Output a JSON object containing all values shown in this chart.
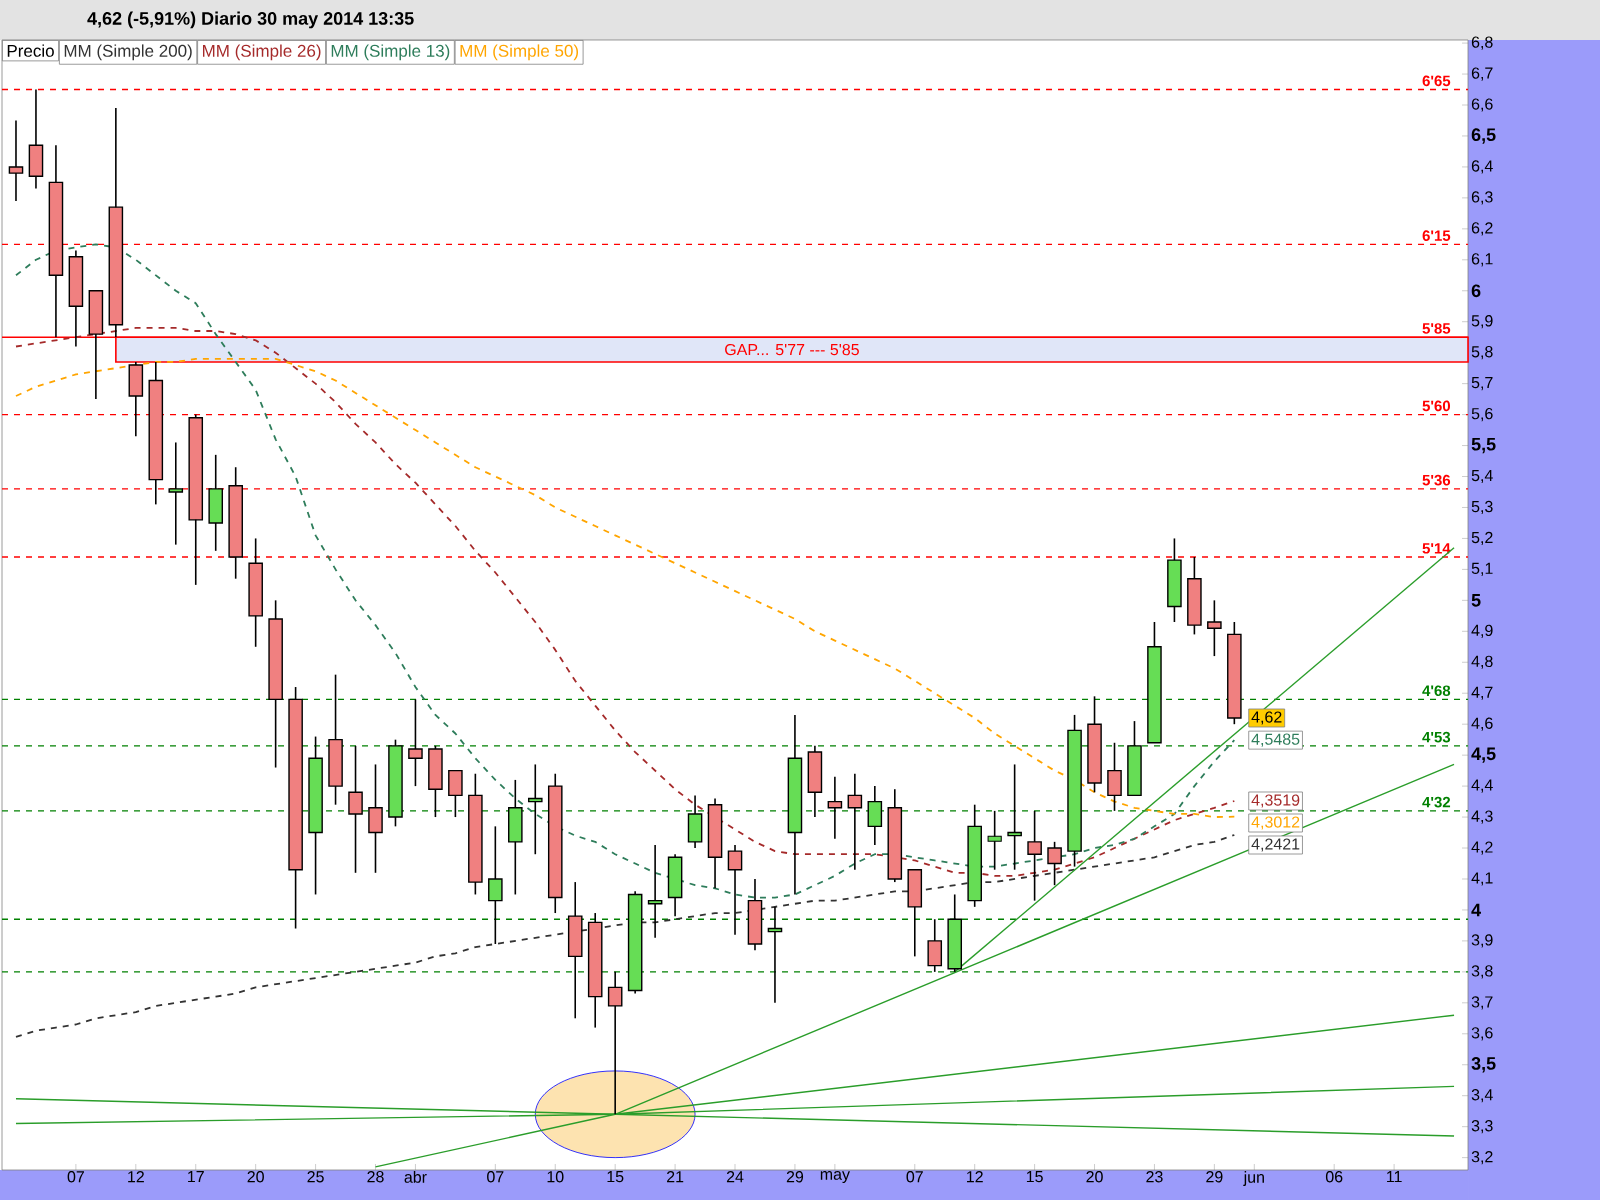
{
  "chart_data": {
    "type": "candlestick",
    "title": "4,62 (-5,91%)   Diario  30 may 2014 13:35",
    "categories": [
      null,
      null,
      null,
      "07",
      null,
      null,
      "12",
      null,
      null,
      "17",
      null,
      null,
      "20",
      null,
      null,
      "25",
      null,
      null,
      "28",
      null,
      "abr",
      null,
      null,
      null,
      "07",
      null,
      null,
      "10",
      null,
      null,
      "15",
      null,
      null,
      "21",
      null,
      null,
      "24",
      null,
      null,
      "29",
      null,
      "may",
      null,
      null,
      null,
      "07",
      null,
      null,
      "12",
      null,
      null,
      "15",
      null,
      null,
      "20",
      null,
      null,
      "23",
      null,
      null,
      "29",
      null,
      "jun",
      null,
      null,
      null,
      "06",
      null,
      null,
      "11",
      null,
      null,
      null
    ],
    "series": [
      {
        "name": "Precio",
        "color": "#000000",
        "ohlc": [
          [
            6.4,
            6.55,
            6.29,
            6.38
          ],
          [
            6.47,
            6.65,
            6.33,
            6.37
          ],
          [
            6.35,
            6.47,
            5.85,
            6.05
          ],
          [
            6.11,
            6.13,
            5.82,
            5.95
          ],
          [
            6.0,
            6.0,
            5.65,
            5.86
          ],
          [
            6.27,
            6.59,
            5.85,
            5.89
          ],
          [
            5.76,
            5.77,
            5.53,
            5.66
          ],
          [
            5.71,
            5.77,
            5.31,
            5.39
          ],
          [
            5.35,
            5.51,
            5.18,
            5.36
          ],
          [
            5.59,
            5.6,
            5.05,
            5.26
          ],
          [
            5.25,
            5.47,
            5.16,
            5.36
          ],
          [
            5.37,
            5.43,
            5.07,
            5.14
          ],
          [
            5.12,
            5.2,
            4.85,
            4.95
          ],
          [
            4.94,
            5.0,
            4.46,
            4.68
          ],
          [
            4.68,
            4.72,
            3.94,
            4.13
          ],
          [
            4.25,
            4.56,
            4.05,
            4.49
          ],
          [
            4.55,
            4.76,
            4.34,
            4.4
          ],
          [
            4.38,
            4.53,
            4.12,
            4.31
          ],
          [
            4.33,
            4.47,
            4.12,
            4.25
          ],
          [
            4.3,
            4.55,
            4.27,
            4.53
          ],
          [
            4.52,
            4.68,
            4.4,
            4.49
          ],
          [
            4.52,
            4.53,
            4.3,
            4.39
          ],
          [
            4.45,
            4.45,
            4.3,
            4.37
          ],
          [
            4.37,
            4.44,
            4.05,
            4.09
          ],
          [
            4.03,
            4.27,
            3.89,
            4.1
          ],
          [
            4.22,
            4.42,
            4.05,
            4.33
          ],
          [
            4.35,
            4.47,
            4.18,
            4.36
          ],
          [
            4.4,
            4.44,
            3.99,
            4.04
          ],
          [
            3.98,
            4.09,
            3.65,
            3.85
          ],
          [
            3.96,
            3.99,
            3.62,
            3.72
          ],
          [
            3.75,
            3.8,
            3.34,
            3.69
          ],
          [
            3.74,
            4.06,
            3.73,
            4.05
          ],
          [
            4.02,
            4.21,
            3.91,
            4.03
          ],
          [
            4.04,
            4.18,
            3.98,
            4.17
          ],
          [
            4.22,
            4.37,
            4.2,
            4.31
          ],
          [
            4.34,
            4.36,
            4.07,
            4.17
          ],
          [
            4.19,
            4.21,
            3.92,
            4.13
          ],
          [
            4.03,
            4.1,
            3.87,
            3.89
          ],
          [
            3.93,
            4.01,
            3.7,
            3.94
          ],
          [
            4.25,
            4.63,
            4.05,
            4.49
          ],
          [
            4.51,
            4.53,
            4.3,
            4.38
          ],
          [
            4.35,
            4.43,
            4.23,
            4.33
          ],
          [
            4.37,
            4.44,
            4.13,
            4.33
          ],
          [
            4.27,
            4.4,
            4.21,
            4.35
          ],
          [
            4.33,
            4.39,
            4.09,
            4.1
          ],
          [
            4.13,
            4.13,
            3.85,
            4.01
          ],
          [
            3.9,
            3.97,
            3.8,
            3.82
          ],
          [
            3.81,
            4.05,
            3.8,
            3.97
          ],
          [
            4.03,
            4.34,
            4.01,
            4.27
          ],
          [
            4.23,
            4.32,
            4.13,
            4.23
          ],
          [
            4.24,
            4.47,
            4.13,
            4.25
          ],
          [
            4.22,
            4.32,
            4.03,
            4.18
          ],
          [
            4.2,
            4.22,
            4.08,
            4.15
          ],
          [
            4.19,
            4.63,
            4.14,
            4.58
          ],
          [
            4.6,
            4.69,
            4.38,
            4.41
          ],
          [
            4.45,
            4.54,
            4.32,
            4.37
          ],
          [
            4.37,
            4.61,
            4.37,
            4.53
          ],
          [
            4.54,
            4.93,
            4.54,
            4.85
          ],
          [
            4.98,
            5.2,
            4.93,
            5.13
          ],
          [
            5.07,
            5.14,
            4.89,
            4.92
          ],
          [
            4.93,
            5.0,
            4.82,
            4.91
          ],
          [
            4.89,
            4.93,
            4.6,
            4.62
          ],
          null,
          null,
          null,
          null,
          null,
          null,
          null,
          null,
          null,
          null,
          null
        ],
        "colors": [
          "#f08080",
          "#f08080",
          "#f08080",
          "#f08080",
          "#f08080",
          "#f08080",
          "#f08080",
          "#f08080",
          "#66dd55",
          "#f08080",
          "#66dd55",
          "#f08080",
          "#f08080",
          "#f08080",
          "#f08080",
          "#66dd55",
          "#f08080",
          "#f08080",
          "#f08080",
          "#66dd55",
          "#f08080",
          "#f08080",
          "#f08080",
          "#f08080",
          "#66dd55",
          "#66dd55",
          "#66dd55",
          "#f08080",
          "#f08080",
          "#f08080",
          "#f08080",
          "#66dd55",
          "#66dd55",
          "#66dd55",
          "#66dd55",
          "#f08080",
          "#f08080",
          "#f08080",
          "#66dd55",
          "#66dd55",
          "#f08080",
          "#f08080",
          "#f08080",
          "#66dd55",
          "#f08080",
          "#f08080",
          "#f08080",
          "#66dd55",
          "#66dd55",
          "#66dd55",
          "#66dd55",
          "#f08080",
          "#f08080",
          "#66dd55",
          "#f08080",
          "#f08080",
          "#66dd55",
          "#66dd55",
          "#66dd55",
          "#f08080",
          "#f08080",
          "#f08080",
          null,
          null,
          null,
          null,
          null,
          null,
          null,
          null,
          null,
          null,
          null
        ],
        "value_labels": [
          null,
          null,
          null,
          null,
          null,
          null,
          null,
          null,
          null,
          null,
          null,
          null,
          null,
          null,
          null,
          null,
          null,
          null,
          null,
          null,
          null,
          null,
          null,
          null,
          null,
          null,
          null,
          null,
          null,
          null,
          null,
          null,
          null,
          null,
          null,
          null,
          null,
          null,
          null,
          null,
          null,
          null,
          null,
          null,
          null,
          null,
          null,
          null,
          null,
          null,
          null,
          null,
          null,
          null,
          null,
          null,
          null,
          null,
          null,
          null,
          null,
          "4,62",
          null,
          null,
          null,
          null,
          null,
          null,
          null,
          null,
          null,
          null,
          null
        ]
      },
      {
        "name": "MM (Simple 200)",
        "type": "line",
        "color": "#333333",
        "line_style": "dashed",
        "values": [
          3.59,
          3.61,
          3.62,
          3.63,
          3.65,
          3.66,
          3.67,
          3.69,
          3.7,
          3.71,
          3.72,
          3.73,
          3.75,
          3.76,
          3.77,
          3.78,
          3.79,
          3.8,
          3.81,
          3.82,
          3.83,
          3.85,
          3.86,
          3.88,
          3.89,
          3.9,
          3.91,
          3.92,
          3.93,
          3.94,
          3.95,
          3.96,
          3.96,
          3.97,
          3.98,
          3.99,
          3.99,
          4.0,
          4.01,
          4.02,
          4.03,
          4.03,
          4.04,
          4.05,
          4.06,
          4.06,
          4.07,
          4.08,
          4.09,
          4.09,
          4.1,
          4.11,
          4.12,
          4.13,
          4.14,
          4.15,
          4.16,
          4.17,
          4.19,
          4.21,
          4.22,
          4.2421,
          null,
          null,
          null,
          null,
          null,
          null,
          null,
          null,
          null,
          null,
          null
        ],
        "value_labels": [
          null,
          null,
          null,
          null,
          null,
          null,
          null,
          null,
          null,
          null,
          null,
          null,
          null,
          null,
          null,
          null,
          null,
          null,
          null,
          null,
          null,
          null,
          null,
          null,
          null,
          null,
          null,
          null,
          null,
          null,
          null,
          null,
          null,
          null,
          null,
          null,
          null,
          null,
          null,
          null,
          null,
          null,
          null,
          null,
          null,
          null,
          null,
          null,
          null,
          null,
          null,
          null,
          null,
          null,
          null,
          null,
          null,
          null,
          null,
          null,
          null,
          "4,2421",
          null,
          null,
          null,
          null,
          null,
          null,
          null,
          null,
          null,
          null,
          null
        ]
      },
      {
        "name": "MM (Simple 26)",
        "type": "line",
        "color": "#a52a2a",
        "line_style": "dashed",
        "values": [
          5.82,
          5.83,
          5.84,
          5.85,
          5.86,
          5.87,
          5.88,
          5.88,
          5.88,
          5.87,
          5.87,
          5.86,
          5.84,
          5.8,
          5.75,
          5.7,
          5.64,
          5.57,
          5.51,
          5.44,
          5.38,
          5.31,
          5.24,
          5.16,
          5.09,
          5.01,
          4.93,
          4.84,
          4.74,
          4.66,
          4.58,
          4.51,
          4.45,
          4.39,
          4.34,
          4.3,
          4.26,
          4.22,
          4.19,
          4.18,
          4.18,
          4.18,
          4.18,
          4.18,
          4.17,
          4.16,
          4.14,
          4.12,
          4.12,
          4.11,
          4.11,
          4.12,
          4.13,
          4.15,
          4.17,
          4.2,
          4.23,
          4.26,
          4.29,
          4.31,
          4.33,
          4.3519,
          null,
          null,
          null,
          null,
          null,
          null,
          null,
          null,
          null,
          null,
          null
        ],
        "value_labels": [
          null,
          null,
          null,
          null,
          null,
          null,
          null,
          null,
          null,
          null,
          null,
          null,
          null,
          null,
          null,
          null,
          null,
          null,
          null,
          null,
          null,
          null,
          null,
          null,
          null,
          null,
          null,
          null,
          null,
          null,
          null,
          null,
          null,
          null,
          null,
          null,
          null,
          null,
          null,
          null,
          null,
          null,
          null,
          null,
          null,
          null,
          null,
          null,
          null,
          null,
          null,
          null,
          null,
          null,
          null,
          null,
          null,
          null,
          null,
          null,
          null,
          "4,3519",
          null,
          null,
          null,
          null,
          null,
          null,
          null,
          null,
          null,
          null,
          null
        ]
      },
      {
        "name": "MM (Simple 13)",
        "type": "line",
        "color": "#2e7d5b",
        "line_style": "dashed",
        "values": [
          6.05,
          6.1,
          6.13,
          6.14,
          6.15,
          6.14,
          6.1,
          6.05,
          6.0,
          5.96,
          5.86,
          5.77,
          5.68,
          5.52,
          5.4,
          5.21,
          5.1,
          5.0,
          4.92,
          4.83,
          4.72,
          4.63,
          4.57,
          4.49,
          4.42,
          4.36,
          4.31,
          4.27,
          4.24,
          4.22,
          4.18,
          4.15,
          4.12,
          4.1,
          4.08,
          4.07,
          4.05,
          4.04,
          4.04,
          4.05,
          4.08,
          4.11,
          4.15,
          4.18,
          4.18,
          4.17,
          4.16,
          4.15,
          4.14,
          4.14,
          4.15,
          4.16,
          4.17,
          4.18,
          4.2,
          4.21,
          4.23,
          4.27,
          4.31,
          4.4,
          4.48,
          4.5485,
          null,
          null,
          null,
          null,
          null,
          null,
          null,
          null,
          null,
          null,
          null
        ],
        "value_labels": [
          null,
          null,
          null,
          null,
          null,
          null,
          null,
          null,
          null,
          null,
          null,
          null,
          null,
          null,
          null,
          null,
          null,
          null,
          null,
          null,
          null,
          null,
          null,
          null,
          null,
          null,
          null,
          null,
          null,
          null,
          null,
          null,
          null,
          null,
          null,
          null,
          null,
          null,
          null,
          null,
          null,
          null,
          null,
          null,
          null,
          null,
          null,
          null,
          null,
          null,
          null,
          null,
          null,
          null,
          null,
          null,
          null,
          null,
          null,
          null,
          null,
          "4,5485",
          null,
          null,
          null,
          null,
          null,
          null,
          null,
          null,
          null,
          null,
          null
        ]
      },
      {
        "name": "MM (Simple 50)",
        "type": "line",
        "color": "#ffa500",
        "line_style": "dashed",
        "values": [
          5.66,
          5.69,
          5.71,
          5.73,
          5.74,
          5.75,
          5.76,
          5.77,
          5.77,
          5.78,
          5.78,
          5.78,
          5.78,
          5.78,
          5.76,
          5.74,
          5.71,
          5.67,
          5.63,
          5.59,
          5.55,
          5.51,
          5.47,
          5.43,
          5.4,
          5.37,
          5.34,
          5.3,
          5.27,
          5.24,
          5.21,
          5.18,
          5.15,
          5.12,
          5.09,
          5.06,
          5.03,
          5.0,
          4.97,
          4.94,
          4.9,
          4.87,
          4.84,
          4.81,
          4.78,
          4.74,
          4.7,
          4.66,
          4.62,
          4.57,
          4.53,
          4.49,
          4.45,
          4.42,
          4.38,
          4.35,
          4.33,
          4.32,
          4.31,
          4.31,
          4.3,
          4.3012,
          null,
          null,
          null,
          null,
          null,
          null,
          null,
          null,
          null,
          null,
          null
        ],
        "value_labels": [
          null,
          null,
          null,
          null,
          null,
          null,
          null,
          null,
          null,
          null,
          null,
          null,
          null,
          null,
          null,
          null,
          null,
          null,
          null,
          null,
          null,
          null,
          null,
          null,
          null,
          null,
          null,
          null,
          null,
          null,
          null,
          null,
          null,
          null,
          null,
          null,
          null,
          null,
          null,
          null,
          null,
          null,
          null,
          null,
          null,
          null,
          null,
          null,
          null,
          null,
          null,
          null,
          null,
          null,
          null,
          null,
          null,
          null,
          null,
          null,
          null,
          "4,3012",
          null,
          null,
          null,
          null,
          null,
          null,
          null,
          null,
          null,
          null,
          null
        ]
      },
      {
        "type": "line",
        "color": "#2a9d2a",
        "line_style": "solid",
        "values": [
          null,
          null,
          null,
          null,
          null,
          null,
          null,
          null,
          null,
          null,
          null,
          null,
          null,
          null,
          null,
          null,
          null,
          null,
          3.17,
          null,
          null,
          null,
          null,
          null,
          null,
          null,
          null,
          null,
          null,
          null,
          3.34,
          null,
          null,
          null,
          null,
          null,
          null,
          null,
          null,
          null,
          null,
          null,
          null,
          null,
          null,
          null,
          null,
          null,
          null,
          null,
          null,
          null,
          null,
          null,
          null,
          null,
          null,
          null,
          null,
          null,
          null,
          null,
          null,
          null,
          null,
          null,
          null,
          null,
          null,
          null,
          null,
          null,
          4.47
        ]
      },
      {
        "type": "line",
        "color": "#2a9d2a",
        "line_style": "solid",
        "values": [
          null,
          null,
          null,
          null,
          null,
          null,
          null,
          null,
          null,
          null,
          null,
          null,
          null,
          null,
          null,
          null,
          null,
          null,
          null,
          null,
          null,
          null,
          null,
          null,
          null,
          null,
          null,
          null,
          null,
          null,
          null,
          null,
          null,
          null,
          null,
          null,
          null,
          null,
          null,
          null,
          null,
          null,
          null,
          null,
          null,
          null,
          null,
          3.8,
          null,
          null,
          null,
          null,
          null,
          null,
          null,
          null,
          null,
          null,
          null,
          null,
          null,
          null,
          null,
          null,
          null,
          null,
          null,
          null,
          null,
          null,
          null,
          null,
          5.17
        ]
      },
      {
        "type": "line",
        "color": "#2a9d2a",
        "line_style": "solid",
        "values": [
          null,
          null,
          null,
          null,
          null,
          null,
          null,
          null,
          null,
          null,
          null,
          null,
          null,
          null,
          null,
          null,
          null,
          null,
          null,
          null,
          null,
          null,
          null,
          null,
          null,
          null,
          null,
          null,
          null,
          null,
          3.34,
          null,
          null,
          null,
          null,
          null,
          null,
          null,
          null,
          null,
          null,
          null,
          null,
          null,
          null,
          null,
          null,
          null,
          null,
          null,
          null,
          null,
          null,
          null,
          null,
          null,
          null,
          null,
          null,
          null,
          null,
          null,
          null,
          null,
          null,
          null,
          null,
          null,
          null,
          null,
          null,
          null,
          3.66
        ]
      },
      {
        "type": "line",
        "color": "#2a9d2a",
        "line_style": "solid",
        "values": [
          3.39,
          null,
          null,
          null,
          null,
          null,
          null,
          null,
          null,
          null,
          null,
          null,
          null,
          null,
          null,
          null,
          null,
          null,
          null,
          null,
          null,
          null,
          null,
          null,
          null,
          null,
          null,
          null,
          null,
          null,
          3.34,
          null,
          null,
          null,
          null,
          null,
          null,
          null,
          null,
          null,
          null,
          null,
          null,
          null,
          null,
          null,
          null,
          null,
          null,
          null,
          null,
          null,
          null,
          null,
          null,
          null,
          null,
          null,
          null,
          null,
          null,
          null,
          null,
          null,
          null,
          null,
          null,
          null,
          null,
          null,
          null,
          null,
          3.27
        ]
      },
      {
        "type": "line",
        "color": "#2a9d2a",
        "line_style": "solid",
        "values": [
          3.31,
          null,
          null,
          null,
          null,
          null,
          null,
          null,
          null,
          null,
          null,
          null,
          null,
          null,
          null,
          null,
          null,
          null,
          null,
          null,
          null,
          null,
          null,
          null,
          null,
          null,
          null,
          null,
          null,
          null,
          3.34,
          null,
          null,
          null,
          null,
          null,
          null,
          null,
          null,
          null,
          null,
          null,
          null,
          null,
          null,
          null,
          null,
          null,
          null,
          null,
          null,
          null,
          null,
          null,
          null,
          null,
          null,
          null,
          null,
          null,
          null,
          null,
          null,
          null,
          null,
          null,
          null,
          null,
          null,
          null,
          null,
          null,
          3.43
        ]
      }
    ],
    "ylim": [
      3.16,
      6.81
    ],
    "yticks": [
      {
        "value": 3.2,
        "label": "3,2"
      },
      {
        "value": 3.3,
        "label": "3,3"
      },
      {
        "value": 3.4,
        "label": "3,4"
      },
      {
        "value": 3.5,
        "label": "3,5"
      },
      {
        "value": 3.6,
        "label": "3,6"
      },
      {
        "value": 3.7,
        "label": "3,7"
      },
      {
        "value": 3.8,
        "label": "3,8"
      },
      {
        "value": 3.9,
        "label": "3,9"
      },
      4,
      {
        "value": 4.1,
        "label": "4,1"
      },
      {
        "value": 4.2,
        "label": "4,2"
      },
      {
        "value": 4.3,
        "label": "4,3"
      },
      {
        "value": 4.4,
        "label": "4,4"
      },
      {
        "value": 4.5,
        "label": "4,5"
      },
      {
        "value": 4.6,
        "label": "4,6"
      },
      {
        "value": 4.7,
        "label": "4,7"
      },
      {
        "value": 4.8,
        "label": "4,8"
      },
      {
        "value": 4.9,
        "label": "4,9"
      },
      5,
      {
        "value": 5.1,
        "label": "5,1"
      },
      {
        "value": 5.2,
        "label": "5,2"
      },
      {
        "value": 5.3,
        "label": "5,3"
      },
      {
        "value": 5.4,
        "label": "5,4"
      },
      {
        "value": 5.5,
        "label": "5,5"
      },
      {
        "value": 5.6,
        "label": "5,6"
      },
      {
        "value": 5.7,
        "label": "5,7"
      },
      {
        "value": 5.8,
        "label": "5,8"
      },
      {
        "value": 5.9,
        "label": "5,9"
      },
      6,
      {
        "value": 6.1,
        "label": "6,1"
      },
      {
        "value": 6.2,
        "label": "6,2"
      },
      {
        "value": 6.3,
        "label": "6,3"
      },
      {
        "value": 6.4,
        "label": "6,4"
      },
      {
        "value": 6.5,
        "label": "6,5"
      },
      {
        "value": 6.6,
        "label": "6,6"
      },
      {
        "value": 6.7,
        "label": "6,7"
      },
      {
        "value": 6.8,
        "label": "6,8"
      }
    ],
    "ref_lines": [
      {
        "axis": "y",
        "value": 6.65,
        "color": "#ff0000",
        "line_style": "dashed"
      },
      {
        "axis": "y",
        "value": 6.15,
        "color": "#ff0000",
        "line_style": "dashed"
      },
      {
        "axis": "y",
        "value": 5.85,
        "color": "#ff0000",
        "line_style": "solid"
      },
      {
        "axis": "y",
        "value": 5.6,
        "color": "#ff0000",
        "line_style": "dashed"
      },
      {
        "axis": "y",
        "value": 5.36,
        "color": "#ff0000",
        "line_style": "dashed"
      },
      {
        "axis": "y",
        "value": 5.14,
        "color": "#ff0000",
        "line_style": "dashed"
      },
      {
        "axis": "y",
        "value": 4.68,
        "color": "#008000",
        "line_style": "dashed"
      },
      {
        "axis": "y",
        "value": 4.53,
        "color": "#008000",
        "line_style": "dashed"
      },
      {
        "axis": "y",
        "value": 4.32,
        "color": "#008000",
        "line_style": "dashed"
      },
      {
        "axis": "y",
        "value": 3.97,
        "color": "#008000",
        "line_style": "dashed"
      },
      {
        "axis": "y",
        "value": 3.8,
        "color": "#008000",
        "line_style": "dashed"
      }
    ],
    "bands": [
      {
        "axis": "y",
        "from": 5.77,
        "to": 5.85,
        "label": "GAP... 5'77 --- 5'85",
        "color": "#e0e6f8"
      }
    ],
    "annotations": [
      {
        "text": "6'65",
        "y": 6.65
      },
      {
        "text": "6'15",
        "y": 6.15
      },
      {
        "text": "5'85",
        "y": 5.85
      },
      {
        "text": "5'60",
        "y": 5.6
      },
      {
        "text": "5'36",
        "y": 5.36
      },
      {
        "text": "5'14",
        "y": 5.14
      },
      {
        "text": "4'68",
        "y": 4.68
      },
      {
        "text": "4'53",
        "y": 4.53
      },
      {
        "text": "4'32",
        "y": 4.32
      }
    ],
    "legend": "top left"
  }
}
